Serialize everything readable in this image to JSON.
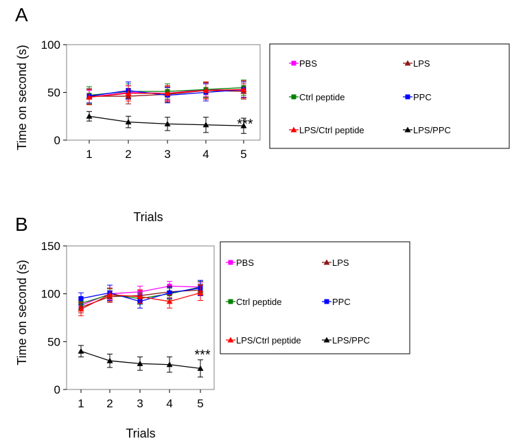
{
  "chart_data": [
    {
      "panel_label": "A",
      "type": "line",
      "xlabel": "Trials",
      "ylabel": "Time on second (s)",
      "categories": [
        "1",
        "2",
        "3",
        "4",
        "5"
      ],
      "yticks": [
        "0",
        "50",
        "100"
      ],
      "ylim": [
        0,
        100
      ],
      "annotation": "***",
      "legend_position": "right",
      "series": [
        {
          "name": "PBS",
          "color": "#ff00ff",
          "marker": "square",
          "values": [
            45,
            50,
            49,
            53,
            52
          ],
          "errors": [
            7,
            7,
            7,
            7,
            7
          ]
        },
        {
          "name": "LPS",
          "color": "#8b1a1a",
          "marker": "triangle",
          "values": [
            46,
            46,
            48,
            52,
            51
          ],
          "errors": [
            8,
            8,
            8,
            8,
            8
          ]
        },
        {
          "name": "Ctrl peptide",
          "color": "#008000",
          "marker": "square",
          "values": [
            47,
            51,
            51,
            53,
            55
          ],
          "errors": [
            9,
            8,
            8,
            8,
            8
          ]
        },
        {
          "name": "PPC",
          "color": "#0000ff",
          "marker": "square",
          "values": [
            46,
            52,
            47,
            50,
            53
          ],
          "errors": [
            7,
            9,
            8,
            9,
            8
          ]
        },
        {
          "name": "LPS/Ctrl peptide",
          "color": "#ff0000",
          "marker": "triangle",
          "values": [
            45,
            49,
            49,
            52,
            53
          ],
          "errors": [
            8,
            8,
            8,
            9,
            9
          ]
        },
        {
          "name": "LPS/PPC",
          "color": "#000000",
          "marker": "triangle",
          "values": [
            25,
            19,
            17,
            16,
            15
          ],
          "errors": [
            5,
            6,
            7,
            8,
            8
          ]
        }
      ]
    },
    {
      "panel_label": "B",
      "type": "line",
      "xlabel": "Trials",
      "ylabel": "Time on second (s)",
      "categories": [
        "1",
        "2",
        "3",
        "4",
        "5"
      ],
      "yticks": [
        "0",
        "50",
        "100",
        "150"
      ],
      "ylim": [
        0,
        150
      ],
      "annotation": "***",
      "legend_position": "right",
      "series": [
        {
          "name": "PBS",
          "color": "#ff00ff",
          "marker": "square",
          "values": [
            88,
            100,
            102,
            108,
            107
          ],
          "errors": [
            6,
            6,
            6,
            5,
            5
          ]
        },
        {
          "name": "LPS",
          "color": "#8b1a1a",
          "marker": "triangle",
          "values": [
            86,
            97,
            98,
            102,
            104
          ],
          "errors": [
            6,
            6,
            6,
            6,
            6
          ]
        },
        {
          "name": "Ctrl peptide",
          "color": "#008000",
          "marker": "square",
          "values": [
            90,
            99,
            95,
            100,
            107
          ],
          "errors": [
            6,
            6,
            6,
            6,
            6
          ]
        },
        {
          "name": "PPC",
          "color": "#0000ff",
          "marker": "square",
          "values": [
            95,
            101,
            92,
            101,
            106
          ],
          "errors": [
            6,
            8,
            7,
            6,
            8
          ]
        },
        {
          "name": "LPS/Ctrl peptide",
          "color": "#ff0000",
          "marker": "triangle",
          "values": [
            84,
            99,
            97,
            92,
            101
          ],
          "errors": [
            7,
            7,
            7,
            7,
            8
          ]
        },
        {
          "name": "LPS/PPC",
          "color": "#000000",
          "marker": "triangle",
          "values": [
            40,
            30,
            27,
            26,
            22
          ],
          "errors": [
            6,
            7,
            7,
            8,
            9
          ]
        }
      ]
    }
  ]
}
